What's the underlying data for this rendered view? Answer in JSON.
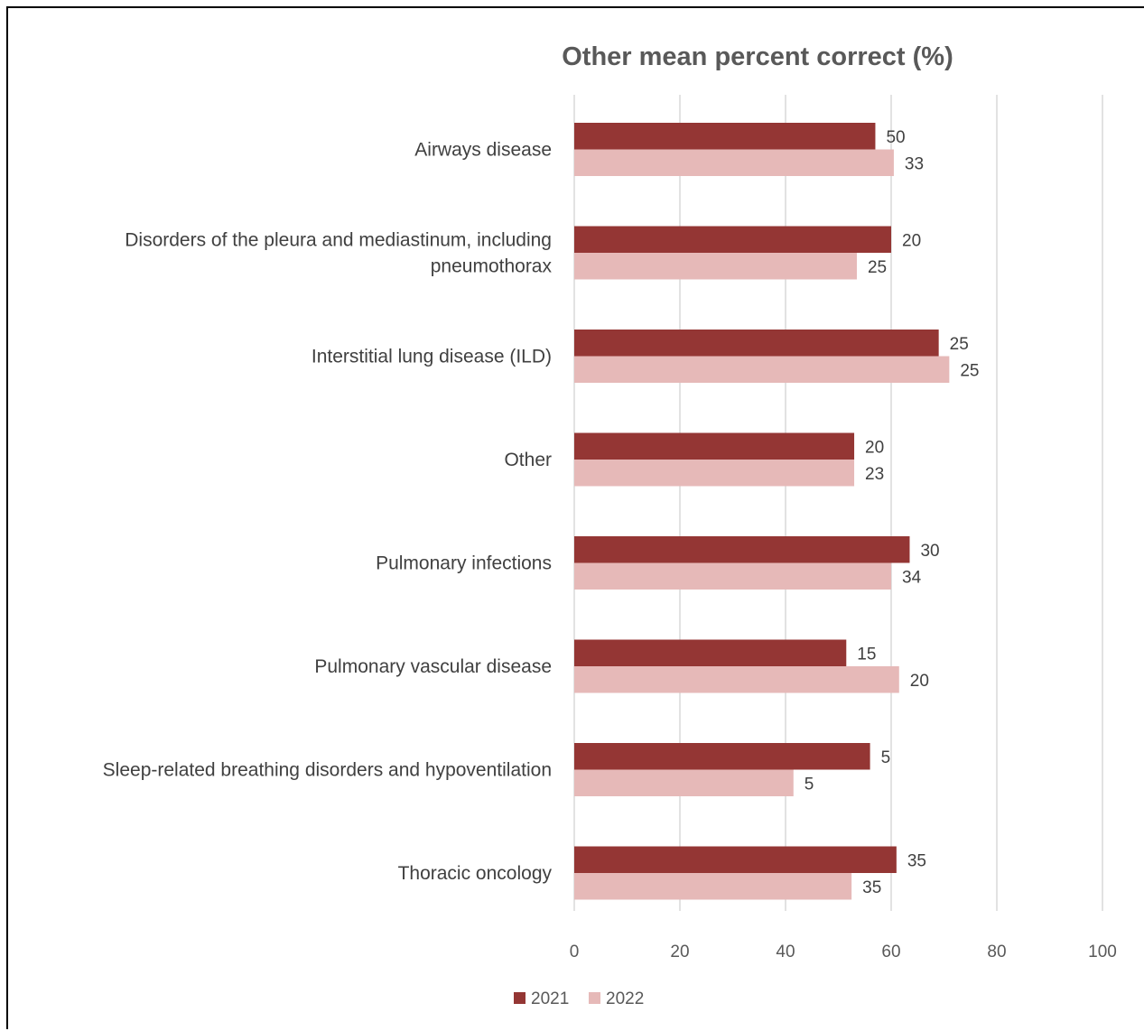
{
  "chart_data": {
    "type": "bar",
    "orientation": "horizontal",
    "title": "Other mean percent correct (%)",
    "xlabel": "",
    "ylabel": "",
    "xlim": [
      0,
      100
    ],
    "x_ticks": [
      "0",
      "20",
      "40",
      "60",
      "80",
      "100"
    ],
    "grid": true,
    "legend_position": "bottom",
    "categories": [
      "Airways disease",
      "Disorders of the pleura and mediastinum, including pneumothorax",
      "Interstitial lung disease (ILD)",
      "Other",
      "Pulmonary infections",
      "Pulmonary vascular disease",
      "Sleep-related breathing disorders and hypoventilation",
      "Thoracic oncology"
    ],
    "category_label_lines": [
      [
        "Airways disease"
      ],
      [
        "Disorders of the pleura and mediastinum, including",
        "pneumothorax"
      ],
      [
        "Interstitial lung disease (ILD)"
      ],
      [
        "Other"
      ],
      [
        "Pulmonary infections"
      ],
      [
        "Pulmonary vascular disease"
      ],
      [
        "Sleep-related breathing disorders and hypoventilation"
      ],
      [
        "Thoracic oncology"
      ]
    ],
    "series": [
      {
        "name": "2021",
        "color": "#943634",
        "values": [
          57,
          60,
          69,
          53,
          63.5,
          51.5,
          56,
          61
        ],
        "data_labels": [
          "50",
          "20",
          "25",
          "20",
          "30",
          "15",
          "5",
          "35"
        ]
      },
      {
        "name": "2022",
        "color": "#e6b9b8",
        "values": [
          60.5,
          53.5,
          71,
          53,
          60,
          61.5,
          41.5,
          52.5
        ],
        "data_labels": [
          "33",
          "25",
          "25",
          "23",
          "34",
          "20",
          "5",
          "35"
        ]
      }
    ]
  }
}
